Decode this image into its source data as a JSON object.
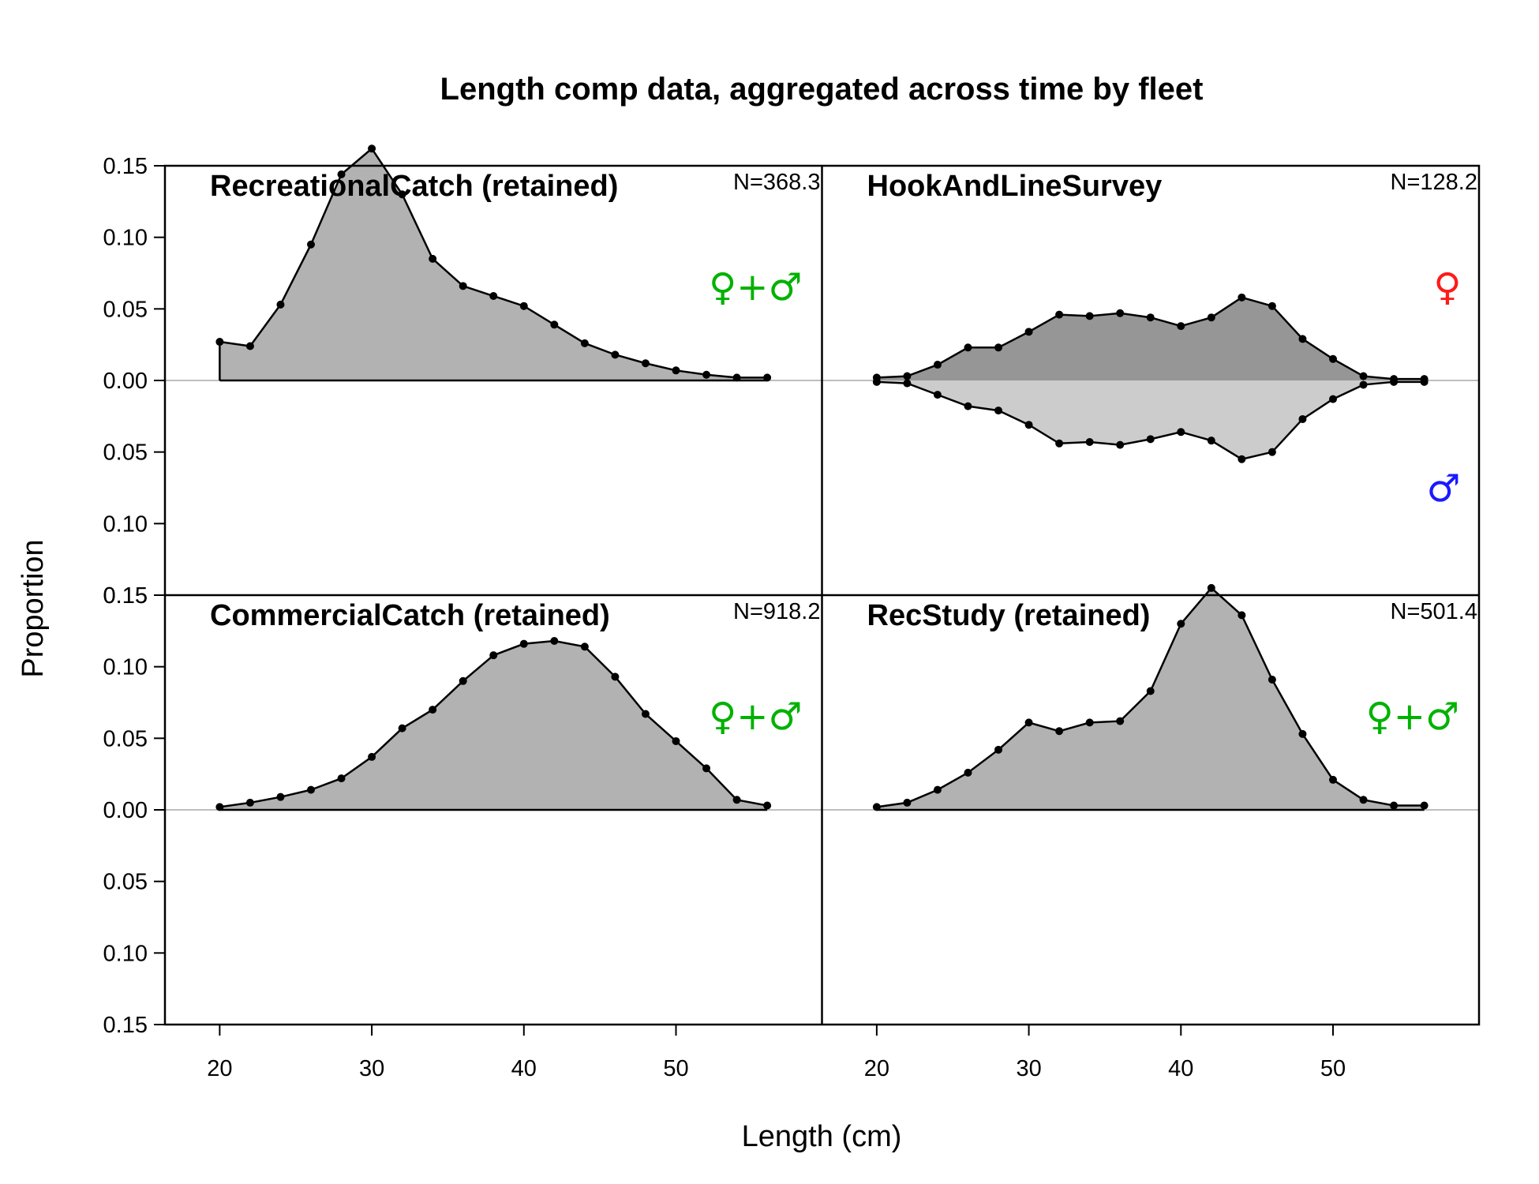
{
  "chart_data": {
    "type": "area",
    "title": "Length comp data, aggregated across time by fleet",
    "xlabel": "Length (cm)",
    "ylabel": "Proportion",
    "xlim": [
      16.4,
      59.6
    ],
    "ylim": [
      -0.15,
      0.15
    ],
    "x_ticks": [
      20,
      30,
      40,
      50
    ],
    "y_ticks": [
      0.15,
      0.1,
      0.05,
      0.0,
      -0.05,
      -0.1,
      -0.15
    ],
    "y_tick_labels": [
      "0.15",
      "0.10",
      "0.05",
      "0.00",
      "0.05",
      "0.10",
      "0.15"
    ],
    "x_tick_labels": [
      "20",
      "30",
      "40",
      "50"
    ],
    "x": [
      20,
      22,
      24,
      26,
      28,
      30,
      32,
      34,
      36,
      38,
      40,
      42,
      44,
      46,
      48,
      50,
      52,
      54,
      56
    ],
    "panels": [
      {
        "name": "RecreationalCatch (retained)",
        "n_label": "N=368.3",
        "sex_symbol": "♀+♂",
        "series": [
          {
            "sex": "combined",
            "values": [
              0.027,
              0.024,
              0.053,
              0.095,
              0.144,
              0.162,
              0.13,
              0.085,
              0.066,
              0.059,
              0.052,
              0.039,
              0.026,
              0.018,
              0.012,
              0.007,
              0.004,
              0.002,
              0.002
            ]
          }
        ]
      },
      {
        "name": "HookAndLineSurvey",
        "n_label": "N=128.2",
        "female_symbol": "♀",
        "male_symbol": "♂",
        "series": [
          {
            "sex": "female",
            "values": [
              0.002,
              0.003,
              0.011,
              0.023,
              0.023,
              0.034,
              0.046,
              0.045,
              0.047,
              0.044,
              0.038,
              0.044,
              0.058,
              0.052,
              0.029,
              0.015,
              0.003,
              0.001,
              0.001
            ]
          },
          {
            "sex": "male",
            "values": [
              0.001,
              0.002,
              0.01,
              0.018,
              0.021,
              0.031,
              0.044,
              0.043,
              0.045,
              0.041,
              0.036,
              0.042,
              0.055,
              0.05,
              0.027,
              0.013,
              0.003,
              0.001,
              0.001
            ]
          }
        ]
      },
      {
        "name": "CommercialCatch (retained)",
        "n_label": "N=918.2",
        "sex_symbol": "♀+♂",
        "series": [
          {
            "sex": "combined",
            "values": [
              0.002,
              0.005,
              0.009,
              0.014,
              0.022,
              0.037,
              0.057,
              0.07,
              0.09,
              0.108,
              0.116,
              0.118,
              0.114,
              0.093,
              0.067,
              0.048,
              0.029,
              0.007,
              0.003
            ]
          }
        ]
      },
      {
        "name": "RecStudy (retained)",
        "n_label": "N=501.4",
        "sex_symbol": "♀+♂",
        "series": [
          {
            "sex": "combined",
            "values": [
              0.002,
              0.005,
              0.014,
              0.026,
              0.042,
              0.061,
              0.055,
              0.061,
              0.062,
              0.083,
              0.13,
              0.155,
              0.136,
              0.091,
              0.053,
              0.021,
              0.007,
              0.003,
              0.003
            ]
          }
        ]
      }
    ]
  },
  "colors": {
    "combined_fill": "#b2b2b2",
    "female_fill": "#969696",
    "male_fill": "#cccccc",
    "combined_symbol": "#00b200",
    "female_symbol": "#ff1a1a",
    "male_symbol": "#1a1aff",
    "zero_line": "#bebebe"
  }
}
